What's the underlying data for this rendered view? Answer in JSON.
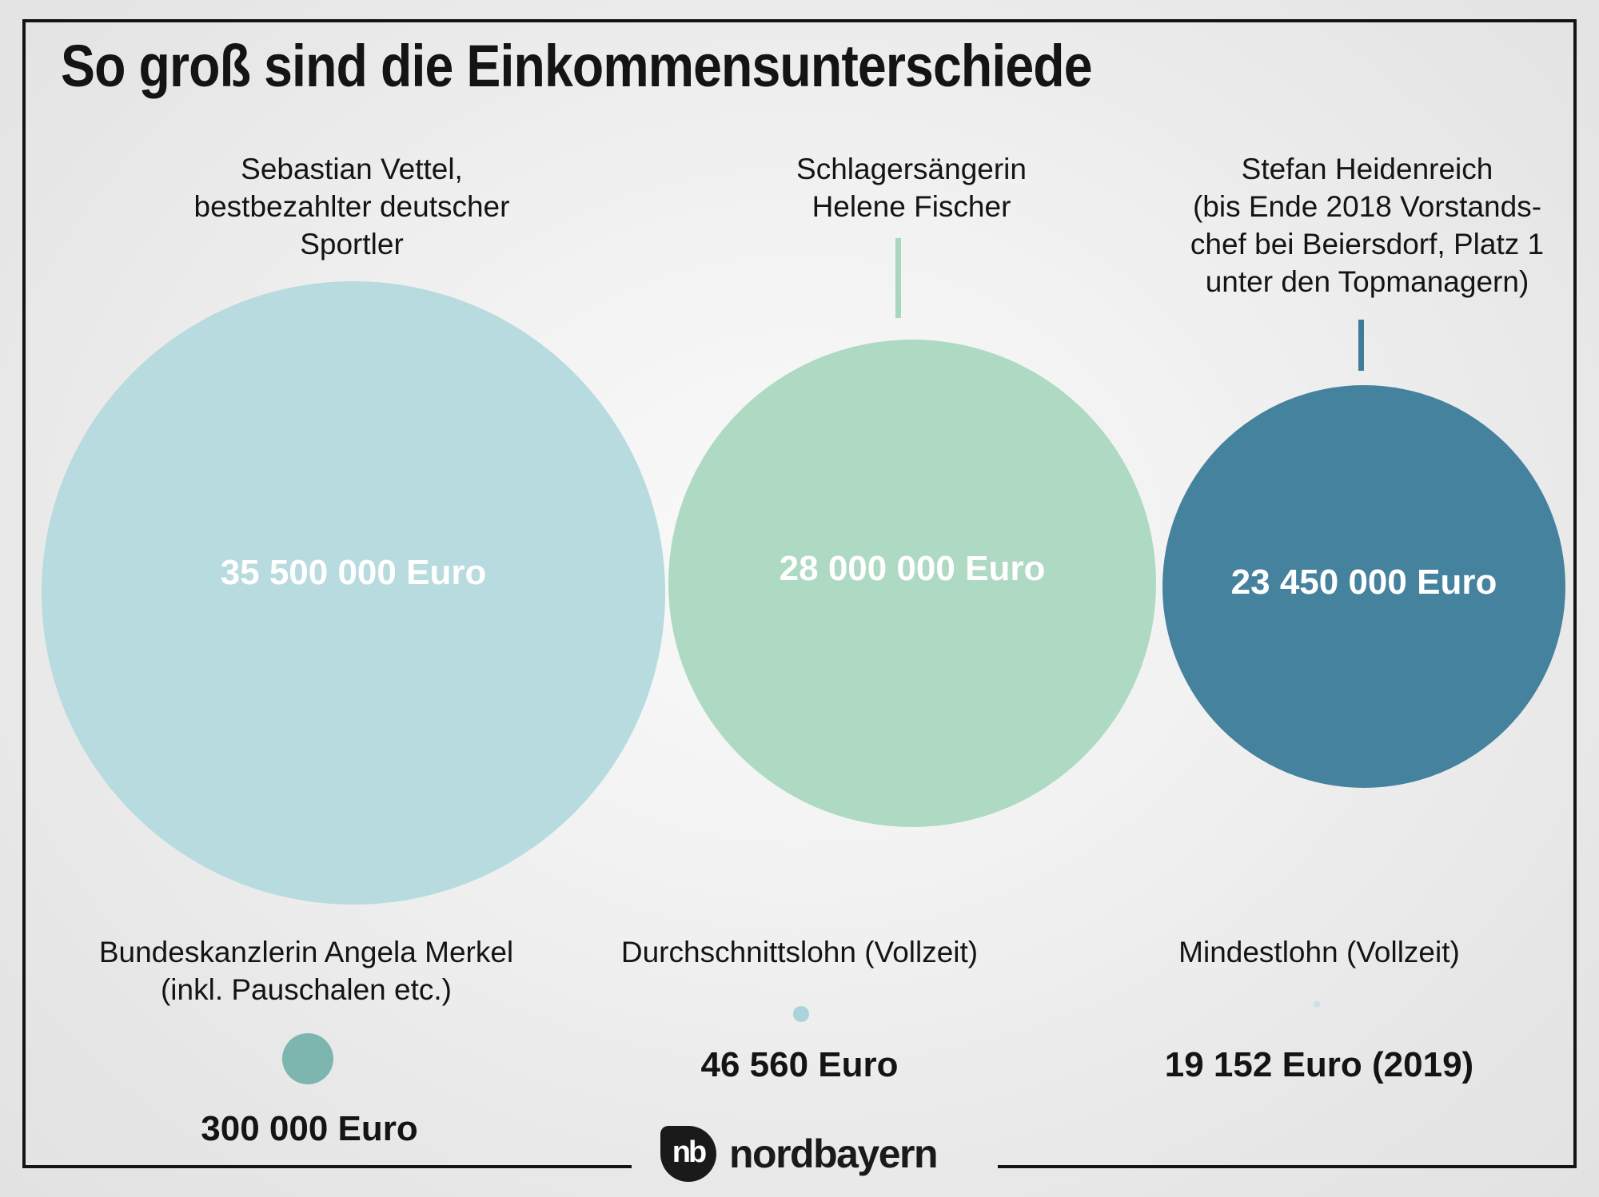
{
  "title": "So groß sind die Einkommensunterschiede",
  "bubbles_large": [
    {
      "label_lines": [
        "Sebastian Vettel,",
        "bestbezahlter deutscher",
        "Sportler"
      ],
      "value": "35 500 000 Euro",
      "color": "#b7dbde"
    },
    {
      "label_lines": [
        "Schlagersängerin",
        "Helene Fischer"
      ],
      "value": "28 000 000 Euro",
      "color": "#aed9c2"
    },
    {
      "label_lines": [
        "Stefan Heidenreich",
        "(bis Ende 2018 Vorstands-",
        "chef bei Beiersdorf,  Platz 1",
        "unter den Topmanagern)"
      ],
      "value": "23 450 000 Euro",
      "color": "#45829d"
    }
  ],
  "bubbles_small": [
    {
      "label_lines": [
        "Bundeskanzlerin Angela Merkel",
        "(inkl. Pauschalen etc.)"
      ],
      "value": "300 000 Euro",
      "color": "#7cb6ae"
    },
    {
      "label_lines": [
        "Durchschnittslohn (Vollzeit)"
      ],
      "value": "46 560 Euro",
      "color": "#a8d4da"
    },
    {
      "label_lines": [
        "Mindestlohn (Vollzeit)"
      ],
      "value": "19 152 Euro (2019)",
      "color": "#cbe2e6"
    }
  ],
  "logo": {
    "monogram": "nb",
    "wordmark": "nordbayern"
  },
  "colors": {
    "frame": "#141414",
    "text": "#141414",
    "value_text_on_bubble": "#ffffff",
    "connector_fischer": "#a9d6bf",
    "connector_heidenreich": "#3c7e99",
    "background_edge": "#e2e2e2",
    "background_center": "#fafafa"
  },
  "chart_data": {
    "type": "bubble",
    "title": "So groß sind die Einkommensunterschiede",
    "unit": "Euro",
    "series": [
      {
        "name": "Sebastian Vettel, bestbezahlter deutscher Sportler",
        "value_eur": 35500000,
        "value_label": "35 500 000 Euro"
      },
      {
        "name": "Schlagersängerin Helene Fischer",
        "value_eur": 28000000,
        "value_label": "28 000 000 Euro"
      },
      {
        "name": "Stefan Heidenreich (bis Ende 2018 Vorstandschef bei Beiersdorf, Platz 1 unter den Topmanagern)",
        "value_eur": 23450000,
        "value_label": "23 450 000 Euro"
      },
      {
        "name": "Bundeskanzlerin Angela Merkel (inkl. Pauschalen etc.)",
        "value_eur": 300000,
        "value_label": "300 000 Euro"
      },
      {
        "name": "Durchschnittslohn (Vollzeit)",
        "value_eur": 46560,
        "value_label": "46 560 Euro"
      },
      {
        "name": "Mindestlohn (Vollzeit)",
        "value_eur": 19152,
        "value_label": "19 152 Euro (2019)"
      }
    ],
    "layout": "three large circles in top row sized proportionally to annual income, three small circles in bottom row; values printed inside large circles and below small circles",
    "legend_position": "none",
    "grid": false
  }
}
